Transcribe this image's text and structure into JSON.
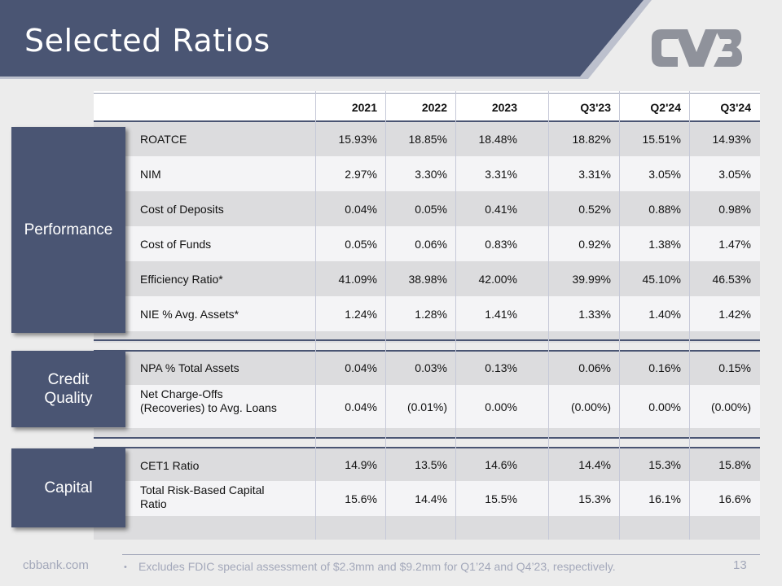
{
  "title": "Selected Ratios",
  "logo_text": "CVB",
  "columns": [
    "2021",
    "2022",
    "2023",
    "Q3'23",
    "Q2'24",
    "Q3'24"
  ],
  "sections": [
    {
      "name": "Performance",
      "rows": [
        {
          "label": "ROATCE",
          "values": [
            "15.93%",
            "18.85%",
            "18.48%",
            "18.82%",
            "15.51%",
            "14.93%"
          ]
        },
        {
          "label": "NIM",
          "values": [
            "2.97%",
            "3.30%",
            "3.31%",
            "3.31%",
            "3.05%",
            "3.05%"
          ]
        },
        {
          "label": "Cost of Deposits",
          "values": [
            "0.04%",
            "0.05%",
            "0.41%",
            "0.52%",
            "0.88%",
            "0.98%"
          ]
        },
        {
          "label": "Cost of Funds",
          "values": [
            "0.05%",
            "0.06%",
            "0.83%",
            "0.92%",
            "1.38%",
            "1.47%"
          ]
        },
        {
          "label": "Efficiency Ratio*",
          "values": [
            "41.09%",
            "38.98%",
            "42.00%",
            "39.99%",
            "45.10%",
            "46.53%"
          ]
        },
        {
          "label": "NIE % Avg. Assets*",
          "values": [
            "1.24%",
            "1.28%",
            "1.41%",
            "1.33%",
            "1.40%",
            "1.42%"
          ]
        }
      ]
    },
    {
      "name": "Credit Quality",
      "rows": [
        {
          "label": "NPA % Total Assets",
          "values": [
            "0.04%",
            "0.03%",
            "0.13%",
            "0.06%",
            "0.16%",
            "0.15%"
          ]
        },
        {
          "label": " Net Charge-Offs (Recoveries) to Avg. Loans",
          "values": [
            "0.04%",
            "(0.01%)",
            "0.00%",
            "(0.00%)",
            "0.00%",
            "(0.00%)"
          ]
        }
      ]
    },
    {
      "name": "Capital",
      "rows": [
        {
          "label": "CET1 Ratio",
          "values": [
            "14.9%",
            "13.5%",
            "14.6%",
            "14.4%",
            "15.3%",
            "15.8%"
          ]
        },
        {
          "label": "Total Risk-Based Capital Ratio",
          "values": [
            "15.6%",
            "14.4%",
            "15.5%",
            "15.3%",
            "16.1%",
            "16.6%"
          ]
        }
      ]
    }
  ],
  "footer": {
    "website": "cbbank.com",
    "bullet": "•",
    "note": "Excludes FDIC special assessment of $2.3mm and $9.2mm for Q1’24 and Q4’23, respectively.",
    "page_number": "13"
  },
  "colors": {
    "header": "#4a5573",
    "accent_stripe": "#bcc0cd",
    "logo": "#8f929b"
  }
}
